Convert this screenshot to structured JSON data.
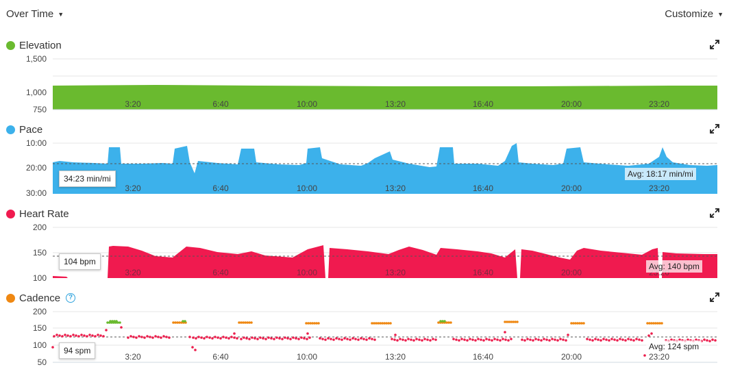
{
  "toolbar": {
    "view_label": "Over Time",
    "customize_label": "Customize"
  },
  "colors": {
    "elevation": "#6aba2f",
    "pace": "#3cb1eb",
    "heart": "#f01a4f",
    "cadence_dot": "#ec1c4b",
    "cadence_orange": "#ef8812",
    "cadence_green": "#6aba2f"
  },
  "x_ticks": [
    "3:20",
    "6:40",
    "10:00",
    "13:20",
    "16:40",
    "20:00",
    "23:20"
  ],
  "elevation": {
    "title": "Elevation",
    "y_ticks": [
      "1,500",
      "1,000",
      "750"
    ]
  },
  "pace": {
    "title": "Pace",
    "y_ticks": [
      "10:00",
      "20:00",
      "30:00"
    ],
    "tooltip": "34:23 min/mi",
    "avg_label": "Avg: 18:17 min/mi"
  },
  "heart": {
    "title": "Heart Rate",
    "y_ticks": [
      "200",
      "150",
      "100"
    ],
    "tooltip": "104 bpm",
    "avg_label": "Avg: 140 bpm"
  },
  "cadence": {
    "title": "Cadence",
    "y_ticks": [
      "200",
      "150",
      "100",
      "50"
    ],
    "tooltip": "94 spm",
    "avg_label": "Avg: 124 spm"
  },
  "chart_data": [
    {
      "type": "area",
      "title": "Elevation",
      "ylim": [
        750,
        1750
      ],
      "y_ticks": [
        750,
        1000,
        1500
      ],
      "x_ticks": [
        "3:20",
        "6:40",
        "10:00",
        "13:20",
        "16:40",
        "20:00",
        "23:20"
      ],
      "note": "nearly flat ~1080"
    },
    {
      "type": "area",
      "title": "Pace",
      "units": "min/mi",
      "ylim": [
        30,
        5
      ],
      "y_ticks": [
        "10:00",
        "20:00",
        "30:00"
      ],
      "average": "18:17"
    },
    {
      "type": "area",
      "title": "Heart Rate",
      "units": "bpm",
      "ylim": [
        100,
        200
      ],
      "y_ticks": [
        100,
        150,
        200
      ],
      "average": 140
    },
    {
      "type": "scatter",
      "title": "Cadence",
      "units": "spm",
      "ylim": [
        50,
        200
      ],
      "y_ticks": [
        50,
        100,
        150,
        200
      ],
      "average": 124
    }
  ]
}
